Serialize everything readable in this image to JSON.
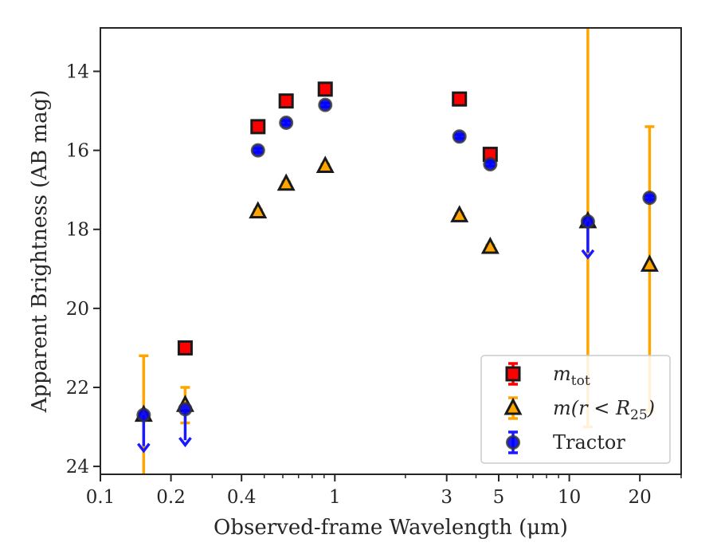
{
  "chart_data": {
    "type": "scatter",
    "xscale": "log",
    "xlim": [
      0.1,
      30
    ],
    "ylim": [
      24.2,
      12.9
    ],
    "y_inverted": true,
    "xlabel": "Observed-frame Wavelength (μm)",
    "ylabel": "Apparent Brightness (AB mag)",
    "xticks": [
      {
        "value": 0.1,
        "label": "0.1"
      },
      {
        "value": 0.2,
        "label": "0.2"
      },
      {
        "value": 0.4,
        "label": "0.4"
      },
      {
        "value": 1,
        "label": "1"
      },
      {
        "value": 3,
        "label": "3"
      },
      {
        "value": 5,
        "label": "5"
      },
      {
        "value": 10,
        "label": "10"
      },
      {
        "value": 20,
        "label": "20"
      }
    ],
    "yticks": [
      {
        "value": 14,
        "label": "14"
      },
      {
        "value": 16,
        "label": "16"
      },
      {
        "value": 18,
        "label": "18"
      },
      {
        "value": 20,
        "label": "20"
      },
      {
        "value": 22,
        "label": "22"
      },
      {
        "value": 24,
        "label": "24"
      }
    ],
    "grid": false,
    "legend_position": "bottom-right",
    "series": [
      {
        "name": "m_tot",
        "legend_main": "m",
        "legend_sub": "tot",
        "marker": "square",
        "color": "#ff0000",
        "errcolor": "#ff0000",
        "points": [
          {
            "x": 0.23,
            "y": 21.0,
            "err": 0.08
          },
          {
            "x": 0.47,
            "y": 15.4,
            "err": 0.06
          },
          {
            "x": 0.62,
            "y": 14.75,
            "err": 0.05
          },
          {
            "x": 0.91,
            "y": 14.45,
            "err": 0.05
          },
          {
            "x": 3.4,
            "y": 14.7,
            "err": 0.05
          },
          {
            "x": 4.6,
            "y": 16.1,
            "err": 0.05
          }
        ]
      },
      {
        "name": "m(r < R25)",
        "legend_main": "m(r < R",
        "legend_sub": "25",
        "legend_end": ")",
        "marker": "triangle",
        "color": "#ffa500",
        "errcolor": "#ffa500",
        "points": [
          {
            "x": 0.153,
            "y": 22.7,
            "err_low": 3.8,
            "err_high": 1.5
          },
          {
            "x": 0.23,
            "y": 22.45,
            "err": 0.45
          },
          {
            "x": 0.47,
            "y": 17.55,
            "err": 0.05
          },
          {
            "x": 0.62,
            "y": 16.85,
            "err": 0.05
          },
          {
            "x": 0.91,
            "y": 16.4,
            "err": 0.05
          },
          {
            "x": 3.4,
            "y": 17.65,
            "err": 0.05
          },
          {
            "x": 4.6,
            "y": 18.45,
            "err": 0.05
          },
          {
            "x": 12.0,
            "y": 17.8,
            "err_low": 5.2,
            "err_high": 5.0
          },
          {
            "x": 22.0,
            "y": 18.9,
            "err_low": 3.7,
            "err_high": 3.5
          }
        ]
      },
      {
        "name": "Tractor",
        "legend_main": "Tractor",
        "marker": "circle",
        "color": "#0000ff",
        "errcolor": "#1a1aff",
        "points": [
          {
            "x": 0.153,
            "y": 22.7,
            "upper_limit": true
          },
          {
            "x": 0.23,
            "y": 22.55,
            "upper_limit": true
          },
          {
            "x": 0.47,
            "y": 16.0,
            "err": 0.05
          },
          {
            "x": 0.62,
            "y": 15.3,
            "err": 0.05
          },
          {
            "x": 0.91,
            "y": 14.85,
            "err": 0.05
          },
          {
            "x": 3.4,
            "y": 15.65,
            "err": 0.05
          },
          {
            "x": 4.6,
            "y": 16.35,
            "err": 0.05
          },
          {
            "x": 12.0,
            "y": 17.8,
            "upper_limit": true
          },
          {
            "x": 22.0,
            "y": 17.2,
            "err": 0.05
          }
        ]
      }
    ]
  }
}
